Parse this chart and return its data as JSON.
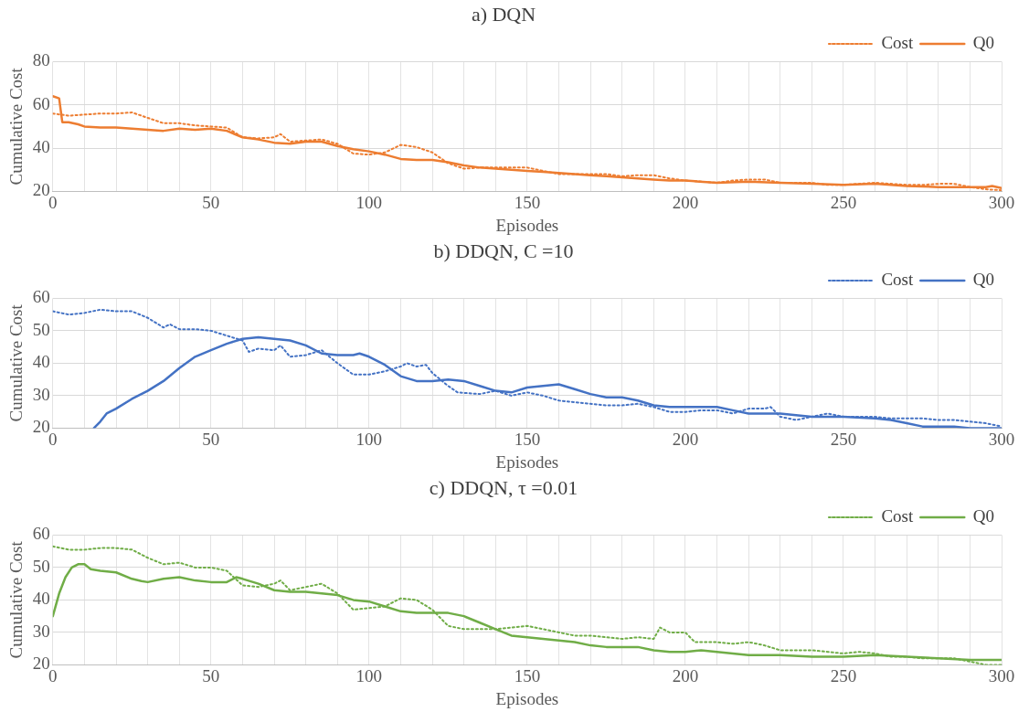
{
  "chart_data": [
    {
      "type": "line",
      "title": "a) DQN",
      "xlabel": "Episodes",
      "ylabel": "Cumulative Cost",
      "xlim": [
        0,
        300
      ],
      "ylim": [
        20,
        80
      ],
      "yticks": [
        20,
        40,
        60,
        80
      ],
      "xticks": [
        0,
        {
          "value": 10,
          "label": null
        },
        {
          "value": 20,
          "label": null
        },
        {
          "value": 30,
          "label": null
        },
        {
          "value": 40,
          "label": null
        },
        50,
        {
          "value": 60,
          "label": null
        },
        {
          "value": 70,
          "label": null
        },
        {
          "value": 80,
          "label": null
        },
        {
          "value": 90,
          "label": null
        },
        100,
        {
          "value": 110,
          "label": null
        },
        {
          "value": 120,
          "label": null
        },
        {
          "value": 130,
          "label": null
        },
        {
          "value": 140,
          "label": null
        },
        150,
        {
          "value": 160,
          "label": null
        },
        {
          "value": 170,
          "label": null
        },
        {
          "value": 180,
          "label": null
        },
        {
          "value": 190,
          "label": null
        },
        200,
        {
          "value": 210,
          "label": null
        },
        {
          "value": 220,
          "label": null
        },
        {
          "value": 230,
          "label": null
        },
        {
          "value": 240,
          "label": null
        },
        250,
        {
          "value": 260,
          "label": null
        },
        {
          "value": 270,
          "label": null
        },
        {
          "value": 280,
          "label": null
        },
        {
          "value": 290,
          "label": null
        },
        300
      ],
      "grid": true,
      "legend": "top right",
      "marker": "none",
      "series": [
        {
          "name": "Cost",
          "color": "#ed7d31",
          "line_style": "dotted",
          "x": [
            0,
            5,
            10,
            15,
            20,
            25,
            30,
            35,
            40,
            45,
            50,
            55,
            60,
            65,
            70,
            72,
            75,
            80,
            85,
            90,
            95,
            100,
            105,
            110,
            115,
            120,
            125,
            130,
            135,
            140,
            145,
            150,
            155,
            160,
            165,
            170,
            175,
            180,
            185,
            190,
            195,
            200,
            205,
            210,
            215,
            220,
            225,
            230,
            235,
            240,
            245,
            250,
            255,
            260,
            265,
            270,
            275,
            280,
            285,
            290,
            295,
            300
          ],
          "values": [
            56,
            55,
            55.5,
            56,
            56,
            56.5,
            54,
            51.5,
            51.5,
            50.5,
            50,
            49.5,
            45,
            44.5,
            45,
            46.5,
            43,
            43.5,
            44,
            42,
            37.5,
            37,
            38,
            41.5,
            40.5,
            38,
            33,
            30.5,
            31,
            31,
            31,
            31,
            29.5,
            28,
            28,
            28,
            28,
            27,
            27.5,
            27.5,
            26,
            25,
            24.5,
            24,
            25,
            25.5,
            25.5,
            24,
            24,
            24,
            23,
            23,
            23.5,
            24,
            23.5,
            23,
            23,
            23.5,
            23.5,
            22,
            21,
            20.5
          ]
        },
        {
          "name": "Q0",
          "color": "#ed7d31",
          "line_style": "solid",
          "x": [
            0,
            2,
            3,
            5,
            8,
            10,
            15,
            20,
            25,
            30,
            35,
            40,
            45,
            50,
            55,
            60,
            65,
            70,
            75,
            80,
            85,
            90,
            95,
            100,
            105,
            110,
            115,
            120,
            125,
            130,
            135,
            140,
            145,
            150,
            155,
            160,
            165,
            170,
            175,
            180,
            185,
            190,
            195,
            200,
            210,
            220,
            230,
            240,
            250,
            260,
            270,
            280,
            290,
            295,
            297,
            300
          ],
          "values": [
            64,
            63,
            52,
            52,
            51,
            50,
            49.5,
            49.5,
            49,
            48.5,
            48,
            49,
            48.5,
            49,
            48,
            45,
            44,
            42.5,
            42,
            43,
            43,
            41,
            39.5,
            38.5,
            37,
            35,
            34.5,
            34.5,
            33.5,
            32,
            31,
            30.5,
            30,
            29.5,
            29,
            28.5,
            28,
            27.5,
            27,
            26.5,
            26,
            25.5,
            25,
            25,
            24,
            24.5,
            24,
            23.5,
            23,
            23.5,
            22.5,
            22,
            22,
            22,
            22.5,
            21.5
          ]
        }
      ]
    },
    {
      "type": "line",
      "title": "b) DDQN, C =10",
      "xlabel": "Episodes",
      "ylabel": "Cumulative Cost",
      "xlim": [
        0,
        300
      ],
      "ylim": [
        20,
        60
      ],
      "yticks": [
        20,
        30,
        40,
        50,
        60
      ],
      "xticks": [
        0,
        {
          "value": 10,
          "label": null
        },
        {
          "value": 20,
          "label": null
        },
        {
          "value": 30,
          "label": null
        },
        {
          "value": 40,
          "label": null
        },
        50,
        {
          "value": 60,
          "label": null
        },
        {
          "value": 70,
          "label": null
        },
        {
          "value": 80,
          "label": null
        },
        {
          "value": 90,
          "label": null
        },
        100,
        {
          "value": 110,
          "label": null
        },
        {
          "value": 120,
          "label": null
        },
        {
          "value": 130,
          "label": null
        },
        {
          "value": 140,
          "label": null
        },
        150,
        {
          "value": 160,
          "label": null
        },
        {
          "value": 170,
          "label": null
        },
        {
          "value": 180,
          "label": null
        },
        {
          "value": 190,
          "label": null
        },
        200,
        {
          "value": 210,
          "label": null
        },
        {
          "value": 220,
          "label": null
        },
        {
          "value": 230,
          "label": null
        },
        {
          "value": 240,
          "label": null
        },
        250,
        {
          "value": 260,
          "label": null
        },
        {
          "value": 270,
          "label": null
        },
        {
          "value": 280,
          "label": null
        },
        {
          "value": 290,
          "label": null
        },
        300
      ],
      "grid": true,
      "legend": "top right",
      "marker": "none",
      "series": [
        {
          "name": "Cost",
          "color": "#4472c4",
          "line_style": "dotted",
          "x": [
            0,
            5,
            10,
            15,
            20,
            25,
            30,
            35,
            37,
            40,
            45,
            50,
            55,
            60,
            62,
            65,
            70,
            72,
            75,
            80,
            85,
            90,
            95,
            100,
            105,
            110,
            112,
            115,
            118,
            120,
            125,
            128,
            135,
            140,
            145,
            150,
            155,
            160,
            165,
            170,
            175,
            180,
            185,
            190,
            195,
            200,
            205,
            210,
            215,
            220,
            225,
            227,
            230,
            235,
            240,
            245,
            250,
            255,
            260,
            265,
            270,
            275,
            280,
            285,
            290,
            295,
            300
          ],
          "values": [
            56,
            55,
            55.5,
            56.5,
            56,
            56,
            54,
            51,
            52,
            50.5,
            50.5,
            50,
            48.5,
            47,
            43.5,
            44.5,
            44,
            45.5,
            42,
            42.5,
            44,
            40,
            36.5,
            36.5,
            37.5,
            39,
            40,
            39,
            39.5,
            37,
            33,
            31,
            30.5,
            31.5,
            30,
            31,
            30,
            28.5,
            28,
            27.5,
            27,
            27,
            27.5,
            26.5,
            25,
            25,
            25.5,
            25.5,
            24.5,
            26,
            26,
            26.5,
            23.5,
            22.5,
            23.5,
            24.5,
            23.5,
            23.5,
            23.5,
            23,
            23,
            23,
            22.5,
            22.5,
            22,
            21.5,
            20.5
          ]
        },
        {
          "name": "Q0",
          "color": "#4472c4",
          "line_style": "solid",
          "x": [
            13,
            15,
            17,
            20,
            25,
            28,
            30,
            35,
            40,
            45,
            50,
            55,
            60,
            65,
            70,
            75,
            80,
            85,
            90,
            95,
            97,
            100,
            105,
            110,
            115,
            120,
            125,
            130,
            135,
            140,
            145,
            150,
            155,
            160,
            165,
            170,
            175,
            180,
            185,
            190,
            195,
            200,
            205,
            210,
            215,
            220,
            230,
            240,
            250,
            260,
            265,
            270,
            275,
            280,
            285,
            290,
            300
          ],
          "values": [
            20,
            22,
            24.5,
            26,
            29,
            30.5,
            31.5,
            34.5,
            38.5,
            42,
            44,
            46,
            47.5,
            48,
            47.5,
            47,
            45.5,
            43,
            42.5,
            42.5,
            43,
            42,
            39.5,
            36,
            34.5,
            34.5,
            35,
            34.5,
            33,
            31.5,
            31,
            32.5,
            33,
            33.5,
            32,
            30.5,
            29.5,
            29.5,
            28.5,
            27,
            26.5,
            26.5,
            26.5,
            26.5,
            25.5,
            24.5,
            24.5,
            23.5,
            23.5,
            23,
            22.5,
            21.5,
            20.5,
            20.5,
            20.5,
            20,
            20
          ]
        }
      ]
    },
    {
      "type": "line",
      "title": "c) DDQN, τ =0.01",
      "xlabel": "Episodes",
      "ylabel": "Cumulative Cost",
      "xlim": [
        0,
        300
      ],
      "ylim": [
        20,
        60
      ],
      "yticks": [
        20,
        30,
        40,
        50,
        60
      ],
      "xticks": [
        0,
        {
          "value": 10,
          "label": null
        },
        {
          "value": 20,
          "label": null
        },
        {
          "value": 30,
          "label": null
        },
        {
          "value": 40,
          "label": null
        },
        50,
        {
          "value": 60,
          "label": null
        },
        {
          "value": 70,
          "label": null
        },
        {
          "value": 80,
          "label": null
        },
        {
          "value": 90,
          "label": null
        },
        100,
        {
          "value": 110,
          "label": null
        },
        {
          "value": 120,
          "label": null
        },
        {
          "value": 130,
          "label": null
        },
        {
          "value": 140,
          "label": null
        },
        150,
        {
          "value": 160,
          "label": null
        },
        {
          "value": 170,
          "label": null
        },
        {
          "value": 180,
          "label": null
        },
        {
          "value": 190,
          "label": null
        },
        200,
        {
          "value": 210,
          "label": null
        },
        {
          "value": 220,
          "label": null
        },
        {
          "value": 230,
          "label": null
        },
        {
          "value": 240,
          "label": null
        },
        250,
        {
          "value": 260,
          "label": null
        },
        {
          "value": 270,
          "label": null
        },
        {
          "value": 280,
          "label": null
        },
        {
          "value": 290,
          "label": null
        },
        300
      ],
      "grid": true,
      "legend": "top right",
      "marker": "none",
      "series": [
        {
          "name": "Cost",
          "color": "#70ad47",
          "line_style": "dotted",
          "x": [
            0,
            5,
            10,
            15,
            20,
            25,
            30,
            35,
            40,
            45,
            50,
            55,
            60,
            65,
            70,
            72,
            75,
            80,
            85,
            90,
            95,
            100,
            105,
            110,
            115,
            120,
            125,
            130,
            135,
            140,
            145,
            150,
            155,
            160,
            165,
            170,
            175,
            180,
            185,
            190,
            192,
            195,
            200,
            203,
            205,
            210,
            215,
            220,
            225,
            230,
            235,
            240,
            245,
            250,
            255,
            260,
            265,
            270,
            275,
            280,
            285,
            290,
            295,
            300
          ],
          "values": [
            56.5,
            55.5,
            55.5,
            56,
            56,
            55.5,
            53,
            51,
            51.5,
            50,
            50,
            49,
            44.5,
            44,
            45,
            46,
            43,
            44,
            45,
            42,
            37,
            37.5,
            38,
            40.5,
            40,
            37,
            32,
            31,
            31,
            31,
            31.5,
            32,
            31,
            30,
            29,
            29,
            28.5,
            28,
            28.5,
            28,
            31.5,
            30,
            30,
            27,
            27,
            27,
            26.5,
            27,
            26,
            24.5,
            24.5,
            24.5,
            24,
            23.5,
            24,
            23.5,
            22.5,
            22.5,
            22,
            22,
            22,
            21,
            20,
            20
          ]
        },
        {
          "name": "Q0",
          "color": "#70ad47",
          "line_style": "solid",
          "x": [
            0,
            2,
            4,
            6,
            8,
            10,
            12,
            15,
            20,
            25,
            28,
            30,
            35,
            40,
            45,
            50,
            55,
            58,
            60,
            65,
            70,
            75,
            80,
            85,
            90,
            95,
            100,
            105,
            110,
            115,
            120,
            125,
            130,
            135,
            140,
            145,
            150,
            155,
            160,
            165,
            170,
            175,
            180,
            185,
            190,
            195,
            200,
            205,
            210,
            215,
            220,
            225,
            230,
            240,
            250,
            260,
            270,
            280,
            290,
            300
          ],
          "values": [
            35,
            42,
            47,
            50,
            51,
            51,
            49.5,
            49,
            48.5,
            46.5,
            45.8,
            45.5,
            46.5,
            47,
            46,
            45.5,
            45.5,
            47,
            46.5,
            45,
            43,
            42.5,
            42.5,
            42,
            41.5,
            40,
            39.5,
            38,
            36.5,
            36,
            36,
            36,
            35,
            33,
            31,
            29,
            28.5,
            28,
            27.5,
            27,
            26,
            25.5,
            25.5,
            25.5,
            24.5,
            24,
            24,
            24.5,
            24,
            23.5,
            23,
            23,
            23,
            22.5,
            22.5,
            23,
            22.5,
            22,
            21.5,
            21.5
          ]
        }
      ]
    }
  ]
}
